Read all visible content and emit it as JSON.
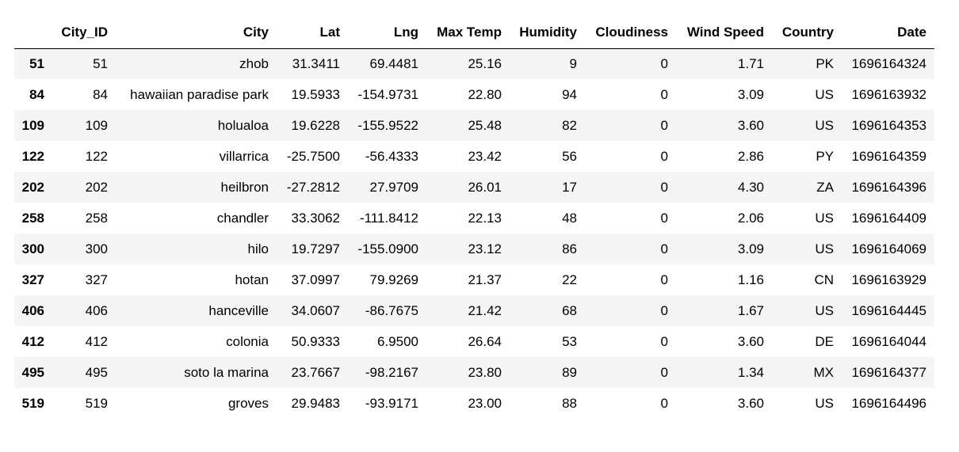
{
  "table": {
    "index_header": "",
    "columns": [
      "City_ID",
      "City",
      "Lat",
      "Lng",
      "Max Temp",
      "Humidity",
      "Cloudiness",
      "Wind Speed",
      "Country",
      "Date"
    ],
    "rows": [
      {
        "index": "51",
        "cells": [
          "51",
          "zhob",
          "31.3411",
          "69.4481",
          "25.16",
          "9",
          "0",
          "1.71",
          "PK",
          "1696164324"
        ]
      },
      {
        "index": "84",
        "cells": [
          "84",
          "hawaiian paradise park",
          "19.5933",
          "-154.9731",
          "22.80",
          "94",
          "0",
          "3.09",
          "US",
          "1696163932"
        ]
      },
      {
        "index": "109",
        "cells": [
          "109",
          "holualoa",
          "19.6228",
          "-155.9522",
          "25.48",
          "82",
          "0",
          "3.60",
          "US",
          "1696164353"
        ]
      },
      {
        "index": "122",
        "cells": [
          "122",
          "villarrica",
          "-25.7500",
          "-56.4333",
          "23.42",
          "56",
          "0",
          "2.86",
          "PY",
          "1696164359"
        ]
      },
      {
        "index": "202",
        "cells": [
          "202",
          "heilbron",
          "-27.2812",
          "27.9709",
          "26.01",
          "17",
          "0",
          "4.30",
          "ZA",
          "1696164396"
        ]
      },
      {
        "index": "258",
        "cells": [
          "258",
          "chandler",
          "33.3062",
          "-111.8412",
          "22.13",
          "48",
          "0",
          "2.06",
          "US",
          "1696164409"
        ]
      },
      {
        "index": "300",
        "cells": [
          "300",
          "hilo",
          "19.7297",
          "-155.0900",
          "23.12",
          "86",
          "0",
          "3.09",
          "US",
          "1696164069"
        ]
      },
      {
        "index": "327",
        "cells": [
          "327",
          "hotan",
          "37.0997",
          "79.9269",
          "21.37",
          "22",
          "0",
          "1.16",
          "CN",
          "1696163929"
        ]
      },
      {
        "index": "406",
        "cells": [
          "406",
          "hanceville",
          "34.0607",
          "-86.7675",
          "21.42",
          "68",
          "0",
          "1.67",
          "US",
          "1696164445"
        ]
      },
      {
        "index": "412",
        "cells": [
          "412",
          "colonia",
          "50.9333",
          "6.9500",
          "26.64",
          "53",
          "0",
          "3.60",
          "DE",
          "1696164044"
        ]
      },
      {
        "index": "495",
        "cells": [
          "495",
          "soto la marina",
          "23.7667",
          "-98.2167",
          "23.80",
          "89",
          "0",
          "1.34",
          "MX",
          "1696164377"
        ]
      },
      {
        "index": "519",
        "cells": [
          "519",
          "groves",
          "29.9483",
          "-93.9171",
          "23.00",
          "88",
          "0",
          "3.60",
          "US",
          "1696164496"
        ]
      }
    ]
  }
}
